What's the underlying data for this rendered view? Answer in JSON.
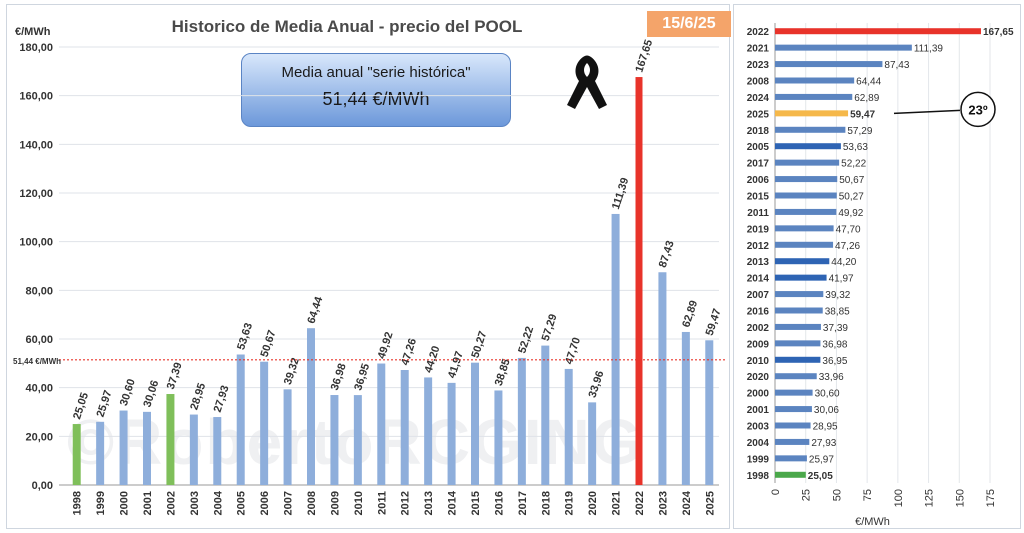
{
  "left_chart": {
    "title": "Historico de Media Anual - precio del POOL",
    "date": "15/6/25",
    "ylabel": "€/MWh",
    "avg_box": {
      "caption": "Media anual \"serie histórica\"",
      "value": "51,44 €/MWh"
    },
    "ref_line_label": "51,44 €/MWh",
    "watermark": "©RobertoRCGING",
    "colors": {
      "default": "#8eaedb",
      "highlight": "#e8332a",
      "green": "#7fbf5a",
      "ref_line": "#e8332a"
    }
  },
  "chart_data": [
    {
      "type": "bar",
      "title": "Historico de Media Anual - precio del POOL",
      "ylabel": "€/MWh",
      "ylim": [
        0,
        180
      ],
      "yticks": [
        "0,00",
        "20,00",
        "40,00",
        "60,00",
        "80,00",
        "100,00",
        "120,00",
        "140,00",
        "160,00",
        "180,00"
      ],
      "categories": [
        "1998",
        "1999",
        "2000",
        "2001",
        "2002",
        "2003",
        "2004",
        "2005",
        "2006",
        "2007",
        "2008",
        "2009",
        "2010",
        "2011",
        "2012",
        "2013",
        "2014",
        "2015",
        "2016",
        "2017",
        "2018",
        "2019",
        "2020",
        "2021",
        "2022",
        "2023",
        "2024",
        "2025"
      ],
      "values": [
        25.05,
        25.97,
        30.6,
        30.06,
        37.39,
        28.95,
        27.93,
        53.63,
        50.67,
        39.32,
        64.44,
        36.98,
        36.95,
        49.92,
        47.26,
        44.2,
        41.97,
        50.27,
        38.85,
        52.22,
        57.29,
        47.7,
        33.96,
        111.39,
        167.65,
        87.43,
        62.89,
        59.47
      ],
      "labels": [
        "25,05",
        "25,97",
        "30,60",
        "30,06",
        "37,39",
        "28,95",
        "27,93",
        "53,63",
        "50,67",
        "39,32",
        "64,44",
        "36,98",
        "36,95",
        "49,92",
        "47,26",
        "44,20",
        "41,97",
        "50,27",
        "38,85",
        "52,22",
        "57,29",
        "47,70",
        "33,96",
        "111,39",
        "167,65",
        "87,43",
        "62,89",
        "59,47"
      ],
      "reference_line": 51.44,
      "grid": true,
      "highlight": {
        "1998": "green",
        "2002": "green",
        "2022": "red"
      }
    },
    {
      "type": "bar",
      "orientation": "horizontal",
      "xlabel": "€/MWh",
      "xlim": [
        0,
        175
      ],
      "xticks": [
        "0",
        "25",
        "50",
        "75",
        "100",
        "125",
        "150",
        "175"
      ],
      "categories": [
        "2022",
        "2021",
        "2023",
        "2008",
        "2024",
        "2025",
        "2018",
        "2005",
        "2017",
        "2006",
        "2015",
        "2011",
        "2019",
        "2012",
        "2013",
        "2014",
        "2007",
        "2016",
        "2002",
        "2009",
        "2010",
        "2020",
        "2000",
        "2001",
        "2003",
        "2004",
        "1999",
        "1998"
      ],
      "values": [
        167.65,
        111.39,
        87.43,
        64.44,
        62.89,
        59.47,
        57.29,
        53.63,
        52.22,
        50.67,
        50.27,
        49.92,
        47.7,
        47.26,
        44.2,
        41.97,
        39.32,
        38.85,
        37.39,
        36.98,
        36.95,
        33.96,
        30.6,
        30.06,
        28.95,
        27.93,
        25.97,
        25.05
      ],
      "labels": [
        "167,65",
        "111,39",
        "87,43",
        "64,44",
        "62,89",
        "59,47",
        "57,29",
        "53,63",
        "52,22",
        "50,67",
        "50,27",
        "49,92",
        "47,70",
        "47,26",
        "44,20",
        "41,97",
        "39,32",
        "38,85",
        "37,39",
        "36,98",
        "36,95",
        "33,96",
        "30,60",
        "30,06",
        "28,95",
        "27,93",
        "25,97",
        "25,05"
      ],
      "rank_badge": "23º",
      "grid": true,
      "colors": {
        "default": "#5b84c0",
        "dark": "#2e64b4",
        "red": "#e8332a",
        "orange": "#f5b84a",
        "green": "#4aa84a"
      },
      "color_map": {
        "2022": "red",
        "2025": "orange",
        "1998": "green",
        "2005": "dark",
        "2013": "dark",
        "2014": "dark",
        "2010": "dark"
      },
      "bold_labels": [
        "2022",
        "2025",
        "1998"
      ]
    }
  ]
}
